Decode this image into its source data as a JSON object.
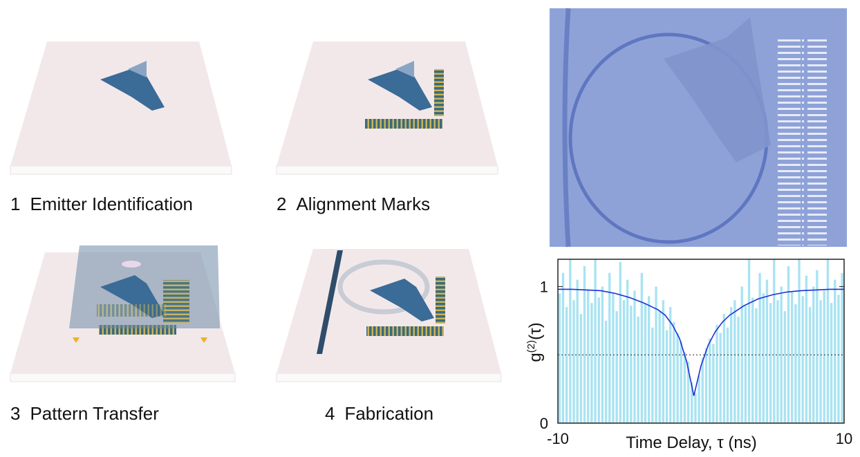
{
  "steps": [
    {
      "number": "1",
      "label": "Emitter Identification"
    },
    {
      "number": "2",
      "label": "Alignment Marks"
    },
    {
      "number": "3",
      "label": "Pattern Transfer"
    },
    {
      "number": "4",
      "label": "Fabrication"
    }
  ],
  "chart_data": {
    "type": "histogram",
    "bins": [
      -10,
      -9.75,
      -9.5,
      -9.25,
      -9,
      -8.75,
      -8.5,
      -8.25,
      -8,
      -7.75,
      -7.5,
      -7.25,
      -7,
      -6.75,
      -6.5,
      -6.25,
      -6,
      -5.75,
      -5.5,
      -5.25,
      -5,
      -4.75,
      -4.5,
      -4.25,
      -4,
      -3.75,
      -3.5,
      -3.25,
      -3,
      -2.75,
      -2.5,
      -2.25,
      -2,
      -1.75,
      -1.5,
      -1.25,
      -1,
      -0.75,
      -0.5,
      -0.25,
      0,
      0.25,
      0.5,
      0.75,
      1,
      1.25,
      1.5,
      1.75,
      2,
      2.25,
      2.5,
      2.75,
      3,
      3.25,
      3.5,
      3.75,
      4,
      4.25,
      4.5,
      4.75,
      5,
      5.25,
      5.5,
      5.75,
      6,
      6.25,
      6.5,
      6.75,
      7,
      7.25,
      7.5,
      7.75,
      8,
      8.25,
      8.5,
      8.75,
      9,
      9.25,
      9.5,
      9.75,
      10
    ],
    "values": [
      0.95,
      1.1,
      0.85,
      1.2,
      0.9,
      1.05,
      0.8,
      1.15,
      0.98,
      0.88,
      1.2,
      0.92,
      1.0,
      0.75,
      1.1,
      0.95,
      0.82,
      1.18,
      0.9,
      1.05,
      0.86,
      0.97,
      0.78,
      1.1,
      0.88,
      0.93,
      0.7,
      1.0,
      0.82,
      0.9,
      0.68,
      0.85,
      0.74,
      0.66,
      0.6,
      0.52,
      0.45,
      0.3,
      0.22,
      0.35,
      0.48,
      0.55,
      0.62,
      0.58,
      0.72,
      0.66,
      0.8,
      0.7,
      0.85,
      0.9,
      0.78,
      1.0,
      0.86,
      1.2,
      0.92,
      0.84,
      1.1,
      0.95,
      1.05,
      0.88,
      1.2,
      0.9,
      1.0,
      0.82,
      1.15,
      0.96,
      0.87,
      1.2,
      0.93,
      1.08,
      0.85,
      1.0,
      1.12,
      0.9,
      0.97,
      1.2,
      0.88,
      1.05,
      0.94,
      1.1
    ],
    "color": "#a9e3f2",
    "fit": {
      "x": [
        -10,
        -9,
        -8,
        -7,
        -6,
        -5,
        -4,
        -3,
        -2.5,
        -2,
        -1.5,
        -1,
        -0.5,
        0,
        0.5,
        1,
        1.5,
        2,
        3,
        4,
        5,
        6,
        7,
        8,
        9,
        10
      ],
      "values": [
        0.98,
        0.98,
        0.975,
        0.97,
        0.95,
        0.92,
        0.88,
        0.83,
        0.79,
        0.72,
        0.62,
        0.45,
        0.2,
        0.42,
        0.57,
        0.67,
        0.74,
        0.79,
        0.86,
        0.91,
        0.94,
        0.96,
        0.97,
        0.975,
        0.98,
        0.98
      ],
      "color": "#1a2fd6"
    },
    "threshold": 0.5,
    "xlim": [
      -10,
      10
    ],
    "xticks": [
      -10,
      10
    ],
    "ylim": [
      0,
      1.2
    ],
    "yticks": [
      0,
      1
    ],
    "xlabel": "Time Delay, τ (ns)",
    "ylabel": "g",
    "ylabel_sup": "(2)",
    "ylabel_arg": "(τ)"
  }
}
